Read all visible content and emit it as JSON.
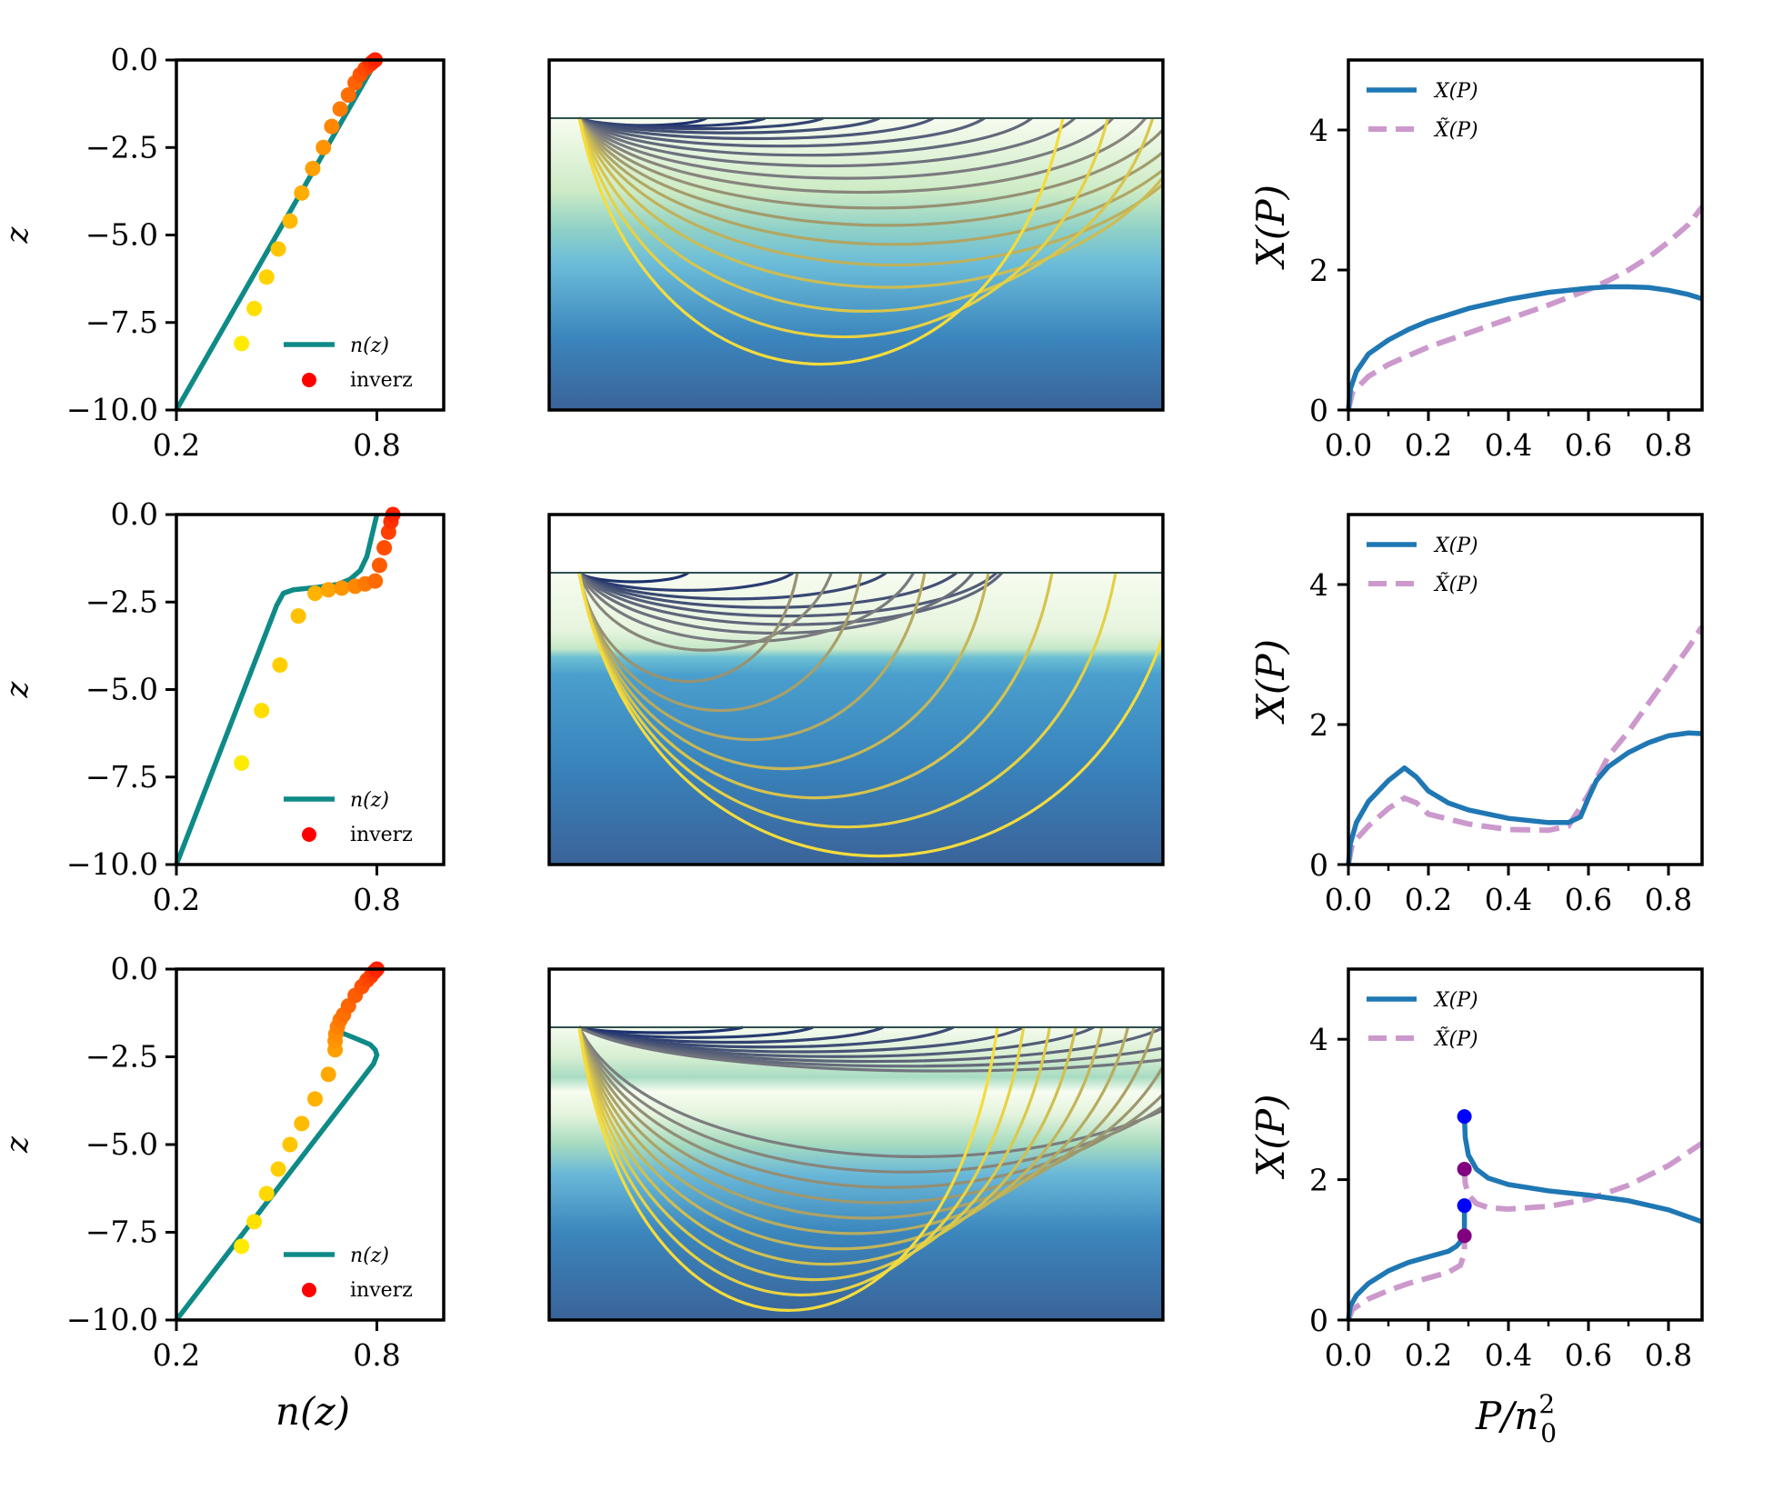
{
  "figure": {
    "rows": 3,
    "columns": [
      "refractive-index-profile",
      "ray-paths",
      "x-of-p"
    ]
  },
  "labels": {
    "left_ylabel": "z",
    "left_xlabel": "n(z)",
    "right_ylabel": "X(P)",
    "right_xlabel": "P/n",
    "right_xlabel_sup": "2",
    "right_xlabel_sub": "0",
    "legend_n": "n(z)",
    "legend_inverz": "inverz",
    "legend_X": "X(P)",
    "legend_Xtilde": "X̃(P)"
  },
  "colors": {
    "n_line": "#0e8a87",
    "X_line": "#1f77b4",
    "Xtilde_line": "#cc99cc",
    "inverz_legend": "#ff0000",
    "marker_blue": "#0000ff",
    "marker_purple": "#800080",
    "surface_line": "#2f4f4f"
  },
  "chart_data": [
    {
      "type": "line",
      "panel": "row1-left",
      "xlabel": "",
      "ylabel": "z",
      "xlim": [
        0.2,
        1.0
      ],
      "ylim": [
        -10,
        0
      ],
      "xticks": [
        "0.2",
        "0.8"
      ],
      "xtick_values": [
        0.2,
        0.8
      ],
      "yticks": [
        "0.0",
        "−2.5",
        "−5.0",
        "−7.5",
        "−10.0"
      ],
      "ytick_values": [
        0,
        -2.5,
        -5,
        -7.5,
        -10
      ],
      "legend": [
        "n(z)",
        "inverz"
      ],
      "legend_position": "lower-right",
      "series": [
        {
          "name": "n(z)",
          "x": [
            0.2,
            0.8
          ],
          "z": [
            -10,
            0
          ]
        },
        {
          "name": "inverz",
          "kind": "scatter",
          "x": [
            0.395,
            0.433,
            0.47,
            0.505,
            0.54,
            0.575,
            0.608,
            0.64,
            0.665,
            0.69,
            0.715,
            0.735,
            0.75,
            0.765,
            0.78,
            0.788,
            0.795
          ],
          "z": [
            -8.1,
            -7.1,
            -6.2,
            -5.4,
            -4.6,
            -3.8,
            -3.1,
            -2.5,
            -1.9,
            -1.4,
            -1.0,
            -0.65,
            -0.42,
            -0.25,
            -0.12,
            -0.05,
            0.0
          ]
        }
      ]
    },
    {
      "type": "rays",
      "panel": "row1-middle",
      "profile": "linear",
      "ray_count": 18,
      "max_depth_fraction": 0.72
    },
    {
      "type": "line",
      "panel": "row1-right",
      "xlabel": "",
      "ylabel": "X(P)",
      "xlim": [
        0,
        0.884
      ],
      "ylim": [
        0,
        5
      ],
      "xticks": [
        "0.0",
        "0.2",
        "0.4",
        "0.6",
        "0.8"
      ],
      "xtick_values": [
        0,
        0.2,
        0.4,
        0.6,
        0.8
      ],
      "yticks": [
        "0",
        "2",
        "4"
      ],
      "ytick_values": [
        0,
        2,
        4
      ],
      "legend": [
        "X(P)",
        "X̃(P)"
      ],
      "legend_position": "upper-left",
      "series": [
        {
          "name": "X(P)",
          "x": [
            0,
            0.005,
            0.02,
            0.05,
            0.1,
            0.15,
            0.2,
            0.3,
            0.4,
            0.5,
            0.6,
            0.65,
            0.7,
            0.75,
            0.8,
            0.85,
            0.884
          ],
          "y": [
            0,
            0.3,
            0.55,
            0.8,
            1.0,
            1.15,
            1.27,
            1.45,
            1.58,
            1.68,
            1.74,
            1.76,
            1.76,
            1.75,
            1.71,
            1.65,
            1.59
          ]
        },
        {
          "name": "X̃(P)",
          "dashed": true,
          "x": [
            0,
            0.01,
            0.05,
            0.1,
            0.2,
            0.3,
            0.4,
            0.5,
            0.6,
            0.65,
            0.7,
            0.75,
            0.8,
            0.85,
            0.884
          ],
          "y": [
            0,
            0.25,
            0.48,
            0.65,
            0.9,
            1.1,
            1.3,
            1.5,
            1.72,
            1.85,
            2.0,
            2.18,
            2.4,
            2.65,
            2.9
          ]
        }
      ]
    },
    {
      "type": "line",
      "panel": "row2-left",
      "xlabel": "",
      "ylabel": "z",
      "xlim": [
        0.2,
        1.0
      ],
      "ylim": [
        -10,
        0
      ],
      "xticks": [
        "0.2",
        "0.8"
      ],
      "xtick_values": [
        0.2,
        0.8
      ],
      "yticks": [
        "0.0",
        "−2.5",
        "−5.0",
        "−7.5",
        "−10.0"
      ],
      "ytick_values": [
        0,
        -2.5,
        -5,
        -7.5,
        -10
      ],
      "legend": [
        "n(z)",
        "inverz"
      ],
      "legend_position": "lower-right",
      "series": [
        {
          "name": "n(z)",
          "x": [
            0.2,
            0.5,
            0.52,
            0.55,
            0.62,
            0.68,
            0.72,
            0.75,
            0.77,
            0.78,
            0.79,
            0.8
          ],
          "z": [
            -10,
            -2.6,
            -2.25,
            -2.15,
            -2.08,
            -2.0,
            -1.85,
            -1.6,
            -1.2,
            -0.8,
            -0.4,
            0.0
          ]
        },
        {
          "name": "inverz",
          "kind": "scatter",
          "x": [
            0.395,
            0.455,
            0.51,
            0.565,
            0.615,
            0.655,
            0.695,
            0.735,
            0.765,
            0.795,
            0.808,
            0.822,
            0.835,
            0.842,
            0.848
          ],
          "z": [
            -7.1,
            -5.6,
            -4.3,
            -2.9,
            -2.25,
            -2.15,
            -2.1,
            -2.05,
            -1.98,
            -1.9,
            -1.45,
            -0.95,
            -0.5,
            -0.2,
            0.0
          ]
        }
      ]
    },
    {
      "type": "rays",
      "panel": "row2-middle",
      "profile": "two-layer",
      "ray_count": 16,
      "layer_depth_fraction": 0.28
    },
    {
      "type": "line",
      "panel": "row2-right",
      "xlabel": "",
      "ylabel": "X(P)",
      "xlim": [
        0,
        0.884
      ],
      "ylim": [
        0,
        5
      ],
      "xticks": [
        "0.0",
        "0.2",
        "0.4",
        "0.6",
        "0.8"
      ],
      "xtick_values": [
        0,
        0.2,
        0.4,
        0.6,
        0.8
      ],
      "yticks": [
        "0",
        "2",
        "4"
      ],
      "ytick_values": [
        0,
        2,
        4
      ],
      "legend": [
        "X(P)",
        "X̃(P)"
      ],
      "legend_position": "upper-left",
      "series": [
        {
          "name": "X(P)",
          "x": [
            0,
            0.005,
            0.02,
            0.05,
            0.1,
            0.14,
            0.17,
            0.2,
            0.25,
            0.3,
            0.4,
            0.5,
            0.55,
            0.58,
            0.6,
            0.62,
            0.65,
            0.7,
            0.75,
            0.8,
            0.85,
            0.884
          ],
          "y": [
            0,
            0.3,
            0.6,
            0.9,
            1.2,
            1.38,
            1.25,
            1.05,
            0.88,
            0.78,
            0.66,
            0.6,
            0.6,
            0.68,
            0.95,
            1.2,
            1.4,
            1.6,
            1.74,
            1.84,
            1.88,
            1.87
          ]
        },
        {
          "name": "X̃(P)",
          "dashed": true,
          "x": [
            0,
            0.01,
            0.05,
            0.1,
            0.14,
            0.17,
            0.2,
            0.3,
            0.4,
            0.5,
            0.55,
            0.6,
            0.65,
            0.7,
            0.75,
            0.8,
            0.85,
            0.884
          ],
          "y": [
            0,
            0.3,
            0.55,
            0.8,
            0.95,
            0.88,
            0.72,
            0.58,
            0.5,
            0.49,
            0.55,
            1.0,
            1.55,
            1.9,
            2.3,
            2.7,
            3.1,
            3.4
          ]
        }
      ]
    },
    {
      "type": "line",
      "panel": "row3-left",
      "xlabel": "n(z)",
      "ylabel": "z",
      "xlim": [
        0.2,
        1.0
      ],
      "ylim": [
        -10,
        0
      ],
      "xticks": [
        "0.2",
        "0.8"
      ],
      "xtick_values": [
        0.2,
        0.8
      ],
      "yticks": [
        "0.0",
        "−2.5",
        "−5.0",
        "−7.5",
        "−10.0"
      ],
      "ytick_values": [
        0,
        -2.5,
        -5,
        -7.5,
        -10
      ],
      "legend": [
        "n(z)",
        "inverz"
      ],
      "legend_position": "lower-right",
      "series": [
        {
          "name": "n(z)",
          "x": [
            0.2,
            0.79,
            0.8,
            0.795,
            0.78,
            0.73,
            0.69,
            0.7,
            0.72,
            0.75,
            0.78,
            0.8
          ],
          "z": [
            -10,
            -2.7,
            -2.45,
            -2.3,
            -2.15,
            -1.95,
            -1.8,
            -1.4,
            -0.95,
            -0.55,
            -0.2,
            0.0
          ]
        },
        {
          "name": "inverz",
          "kind": "scatter",
          "x": [
            0.395,
            0.433,
            0.47,
            0.505,
            0.54,
            0.575,
            0.615,
            0.655,
            0.675,
            0.675,
            0.677,
            0.682,
            0.69,
            0.7,
            0.715,
            0.735,
            0.755,
            0.77,
            0.782,
            0.79,
            0.795,
            0.8
          ],
          "z": [
            -7.9,
            -7.2,
            -6.4,
            -5.7,
            -5.0,
            -4.4,
            -3.7,
            -3.0,
            -2.3,
            -2.05,
            -1.85,
            -1.65,
            -1.45,
            -1.3,
            -1.05,
            -0.75,
            -0.5,
            -0.32,
            -0.2,
            -0.1,
            -0.05,
            0.0
          ]
        }
      ]
    },
    {
      "type": "rays",
      "panel": "row3-middle",
      "profile": "waveguide",
      "ray_count": 20
    },
    {
      "type": "line",
      "panel": "row3-right",
      "xlabel": "P/n0²",
      "ylabel": "X(P)",
      "xlim": [
        0,
        0.884
      ],
      "ylim": [
        0,
        5
      ],
      "xticks": [
        "0.0",
        "0.2",
        "0.4",
        "0.6",
        "0.8"
      ],
      "xtick_values": [
        0,
        0.2,
        0.4,
        0.6,
        0.8
      ],
      "yticks": [
        "0",
        "2",
        "4"
      ],
      "ytick_values": [
        0,
        2,
        4
      ],
      "legend": [
        "X(P)",
        "X̃(P)"
      ],
      "legend_position": "upper-left",
      "series": [
        {
          "name": "X(P) lower",
          "x": [
            0,
            0.005,
            0.02,
            0.05,
            0.1,
            0.15,
            0.2,
            0.25,
            0.27,
            0.285,
            0.29,
            0.29
          ],
          "y": [
            0,
            0.2,
            0.35,
            0.52,
            0.7,
            0.82,
            0.9,
            0.98,
            1.05,
            1.15,
            1.3,
            1.63
          ]
        },
        {
          "name": "X(P) upper",
          "x": [
            0.29,
            0.292,
            0.3,
            0.32,
            0.35,
            0.4,
            0.5,
            0.6,
            0.7,
            0.8,
            0.884
          ],
          "y": [
            2.9,
            2.6,
            2.35,
            2.15,
            2.02,
            1.93,
            1.84,
            1.78,
            1.7,
            1.57,
            1.4
          ]
        },
        {
          "name": "X̃(P) lower",
          "dashed": true,
          "x": [
            0,
            0.01,
            0.05,
            0.1,
            0.15,
            0.2,
            0.25,
            0.28,
            0.29,
            0.29
          ],
          "y": [
            0,
            0.15,
            0.3,
            0.42,
            0.52,
            0.6,
            0.68,
            0.78,
            0.95,
            1.2
          ]
        },
        {
          "name": "X̃(P) upper",
          "dashed": true,
          "x": [
            0.29,
            0.292,
            0.3,
            0.32,
            0.35,
            0.4,
            0.5,
            0.6,
            0.7,
            0.8,
            0.884
          ],
          "y": [
            2.15,
            1.95,
            1.78,
            1.66,
            1.6,
            1.58,
            1.62,
            1.72,
            1.92,
            2.2,
            2.52
          ]
        },
        {
          "name": "markers-blue",
          "kind": "scatter",
          "color": "#0000ff",
          "x": [
            0.29,
            0.29
          ],
          "y": [
            2.9,
            1.63
          ]
        },
        {
          "name": "markers-purple",
          "kind": "scatter",
          "color": "#800080",
          "x": [
            0.29,
            0.29
          ],
          "y": [
            2.15,
            1.2
          ]
        }
      ]
    }
  ]
}
